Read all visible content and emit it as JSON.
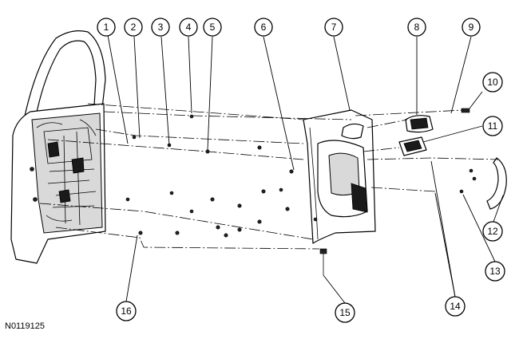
{
  "figure_id": "N0119125",
  "callouts": [
    "1",
    "2",
    "3",
    "4",
    "5",
    "6",
    "7",
    "8",
    "9",
    "10",
    "11",
    "12",
    "13",
    "14",
    "15",
    "16"
  ],
  "colors": {
    "line": "#000000",
    "background": "#ffffff",
    "shade": "#d9d9d9"
  }
}
